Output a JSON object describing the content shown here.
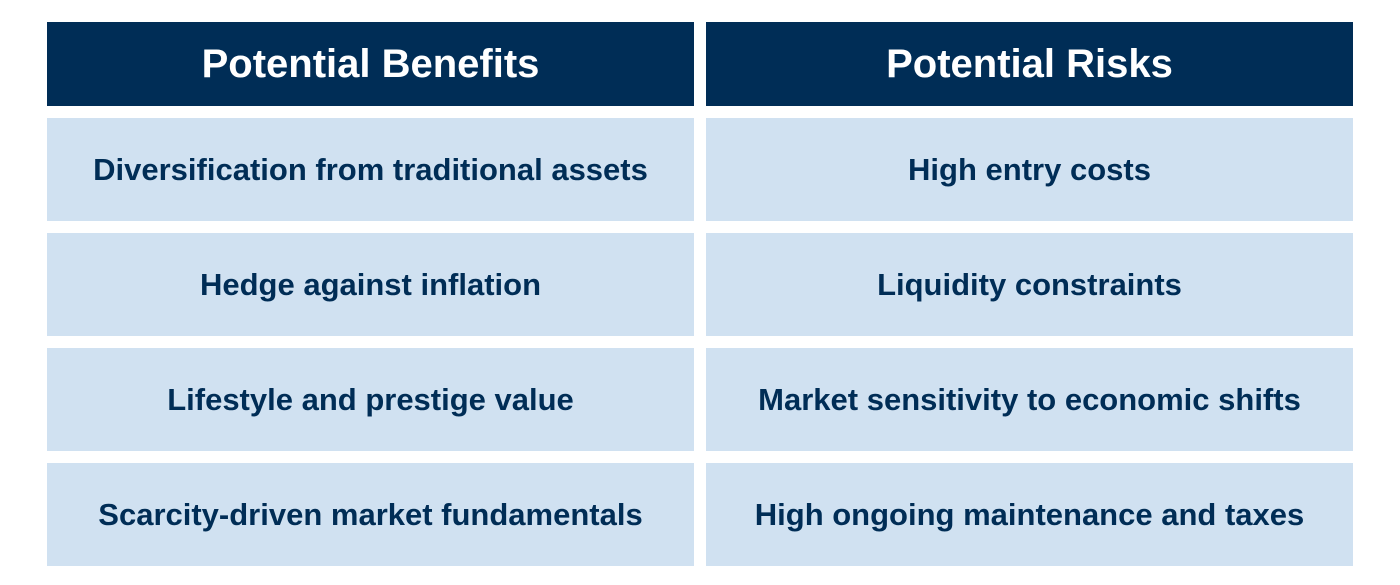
{
  "headers": {
    "benefits": "Potential Benefits",
    "risks": "Potential Risks"
  },
  "rows": [
    {
      "benefit": "Diversification from traditional assets",
      "risk": "High entry costs"
    },
    {
      "benefit": "Hedge against inflation",
      "risk": "Liquidity constraints"
    },
    {
      "benefit": "Lifestyle and prestige value",
      "risk": "Market sensitivity to economic shifts"
    },
    {
      "benefit": "Scarcity-driven market fundamentals",
      "risk": "High ongoing maintenance and taxes"
    }
  ],
  "colors": {
    "header_bg": "#002d56",
    "cell_bg": "#d0e1f1",
    "text": "#002d56"
  }
}
